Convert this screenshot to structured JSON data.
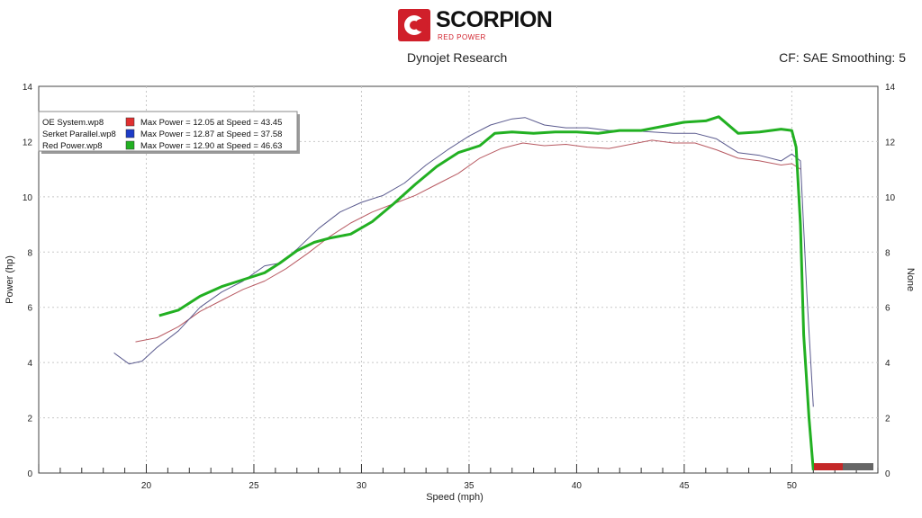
{
  "header": {
    "brand": "SCORPION",
    "brand_sub": "RED POWER",
    "title": "Dynojet Research",
    "cf": "CF: SAE Smoothing: 5"
  },
  "chart_data": {
    "type": "line",
    "xlabel": "Speed (mph)",
    "ylabel": "Power (hp)",
    "y2label": "None",
    "xlim": [
      15,
      54
    ],
    "ylim": [
      0,
      14
    ],
    "x_ticks": [
      20,
      25,
      30,
      35,
      40,
      45,
      50
    ],
    "y_ticks": [
      0,
      2,
      4,
      6,
      8,
      10,
      12,
      14
    ],
    "grid": true,
    "legend_position": "top-left",
    "series": [
      {
        "name": "OE System.wp8",
        "stat": "Max Power = 12.05 at Speed = 43.45",
        "color": "#b85a62",
        "x": [
          19.5,
          20.5,
          21.5,
          22.5,
          23.5,
          24.5,
          25.5,
          26.5,
          27.5,
          28.5,
          29.5,
          30.5,
          31.5,
          32.5,
          33.5,
          34.5,
          35.5,
          36.5,
          37.5,
          38.5,
          39.5,
          40.5,
          41.5,
          42.5,
          43.5,
          44.5,
          45.5,
          46.5,
          47.5,
          48.5,
          49.5,
          50.0,
          50.4
        ],
        "values": [
          4.75,
          4.9,
          5.3,
          5.85,
          6.25,
          6.65,
          6.95,
          7.4,
          7.95,
          8.55,
          9.05,
          9.45,
          9.75,
          10.05,
          10.45,
          10.85,
          11.4,
          11.75,
          11.95,
          11.85,
          11.9,
          11.8,
          11.75,
          11.9,
          12.05,
          11.95,
          11.95,
          11.7,
          11.4,
          11.3,
          11.15,
          11.2,
          11.0
        ]
      },
      {
        "name": "Serket Parallel.wp8",
        "stat": "Max Power = 12.87 at Speed = 37.58",
        "color": "#5a5a8e",
        "x": [
          18.5,
          19.2,
          19.8,
          20.5,
          21.5,
          22.5,
          23.5,
          24.5,
          25.5,
          26.2,
          27.0,
          28.0,
          29.0,
          30.0,
          31.0,
          32.0,
          33.0,
          34.0,
          35.0,
          36.0,
          37.0,
          37.6,
          38.5,
          39.5,
          40.5,
          41.5,
          42.5,
          43.5,
          44.5,
          45.5,
          46.5,
          47.5,
          48.5,
          49.5,
          50.0,
          50.4,
          50.7,
          51.0
        ],
        "values": [
          4.35,
          3.95,
          4.05,
          4.55,
          5.15,
          6.0,
          6.55,
          6.95,
          7.5,
          7.6,
          8.1,
          8.85,
          9.45,
          9.8,
          10.05,
          10.5,
          11.15,
          11.7,
          12.2,
          12.6,
          12.82,
          12.87,
          12.6,
          12.5,
          12.5,
          12.4,
          12.4,
          12.35,
          12.3,
          12.3,
          12.1,
          11.6,
          11.5,
          11.3,
          11.55,
          11.3,
          6.5,
          2.4
        ]
      },
      {
        "name": "Red Power.wp8",
        "stat": "Max Power = 12.90 at Speed = 46.63",
        "color": "#22b022",
        "x": [
          20.6,
          21.5,
          22.5,
          23.5,
          24.5,
          25.5,
          26.2,
          27.0,
          27.8,
          28.5,
          29.5,
          30.5,
          31.5,
          32.5,
          33.5,
          34.5,
          35.5,
          36.2,
          37.0,
          38.0,
          39.0,
          40.0,
          41.0,
          42.0,
          43.0,
          44.0,
          45.0,
          46.0,
          46.6,
          47.5,
          48.5,
          49.5,
          50.0,
          50.2,
          50.4,
          50.55,
          50.8,
          51.0
        ],
        "values": [
          5.7,
          5.9,
          6.4,
          6.75,
          7.0,
          7.25,
          7.6,
          8.05,
          8.35,
          8.5,
          8.65,
          9.1,
          9.75,
          10.45,
          11.1,
          11.6,
          11.85,
          12.3,
          12.35,
          12.3,
          12.35,
          12.35,
          12.3,
          12.4,
          12.4,
          12.55,
          12.7,
          12.75,
          12.9,
          12.3,
          12.35,
          12.45,
          12.4,
          11.8,
          9.0,
          5.0,
          2.0,
          0.1
        ]
      }
    ]
  }
}
